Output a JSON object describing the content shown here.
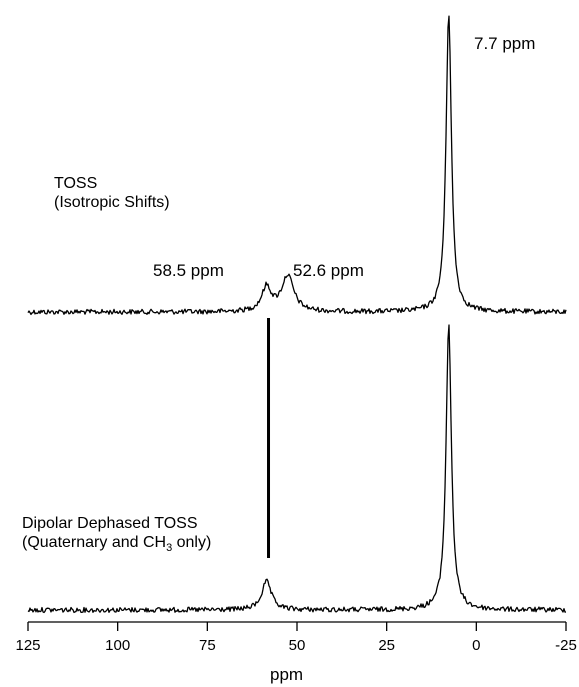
{
  "chart_data": {
    "type": "line",
    "title": "",
    "xlabel": "ppm",
    "ylabel": "",
    "xlim": [
      125,
      -25
    ],
    "reversed_x": true,
    "grid": false,
    "x_ticks": [
      125,
      100,
      75,
      50,
      25,
      0,
      -25
    ],
    "x_tick_labels": [
      "125",
      "100",
      "75",
      "50",
      "25",
      "0",
      "-25"
    ],
    "series": [
      {
        "label_line1": "TOSS",
        "label_line2": "(Isotropic Shifts)",
        "peaks": [
          {
            "ppm": 58.5,
            "height": 0.08,
            "width": 1.6
          },
          {
            "ppm": 52.6,
            "height": 0.12,
            "width": 2.0
          },
          {
            "ppm": 7.7,
            "height": 1.0,
            "width": 0.9
          }
        ]
      },
      {
        "label_line1": "Dipolar Dephased TOSS",
        "label_line2_pre": "(Quaternary and CH",
        "label_line2_sub": "3",
        "label_line2_post": " only)",
        "peaks": [
          {
            "ppm": 58.5,
            "height": 0.1,
            "width": 1.6
          },
          {
            "ppm": 7.7,
            "height": 1.0,
            "width": 0.9
          }
        ]
      }
    ],
    "annotations": [
      {
        "text": "7.7 ppm",
        "ppm": 7.7
      },
      {
        "text": "58.5 ppm",
        "ppm": 58.5
      },
      {
        "text": "52.6 ppm",
        "ppm": 52.6
      }
    ],
    "marker_line_ppm": 58.5
  }
}
